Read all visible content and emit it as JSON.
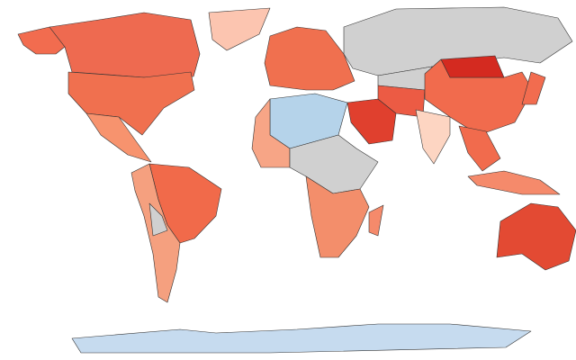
{
  "map": {
    "type": "choropleth",
    "regions": [
      {
        "color": "#f26c4f"
      },
      {
        "color": "#ee6a50"
      },
      {
        "color": "#fcc5b0"
      },
      {
        "color": "#f0704f"
      },
      {
        "color": "#f7936e"
      },
      {
        "color": "#f16a4a"
      },
      {
        "color": "#f5a07f"
      },
      {
        "color": "#d0d0d0"
      },
      {
        "color": "#b5d3ea"
      },
      {
        "color": "#f7a586"
      },
      {
        "color": "#d0d0d0"
      },
      {
        "color": "#f38e6b"
      },
      {
        "color": "#f58a6b"
      },
      {
        "color": "#f0704f"
      },
      {
        "color": "#d0d0d0"
      },
      {
        "color": "#d0d0d0"
      },
      {
        "color": "#e0402e"
      },
      {
        "color": "#ec5b44"
      },
      {
        "color": "#fdd5c2"
      },
      {
        "color": "#f16b4d"
      },
      {
        "color": "#d42a20"
      },
      {
        "color": "#f16b4d"
      },
      {
        "color": "#f58a6b"
      },
      {
        "color": "#f26c4f"
      },
      {
        "color": "#e34a33"
      },
      {
        "color": "#c6dbef"
      }
    ]
  }
}
